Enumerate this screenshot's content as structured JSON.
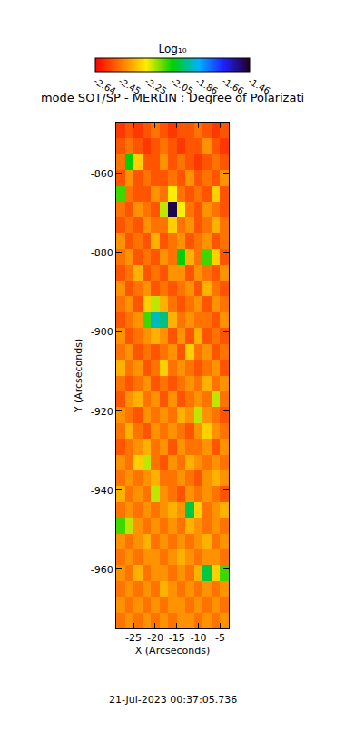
{
  "chart_data": {
    "type": "heatmap",
    "title": "mode SOT/SP - MERLIN : Degree of Polarizati",
    "x_label": "X (Arcseconds)",
    "y_label": "Y (Arcseconds)",
    "annotations": [
      "21-Jul-2023 00:37:05.736"
    ],
    "colorbar_title": "Log₁₀",
    "zlim": [
      -2.64,
      -1.46
    ],
    "zticks": [
      -2.64,
      -2.45,
      -2.25,
      -2.05,
      -1.86,
      -1.66,
      -1.46
    ],
    "xlim": [
      -29,
      -3
    ],
    "ylim": [
      -975,
      -847
    ],
    "xticks": [
      -25,
      -20,
      -15,
      -10,
      -5
    ],
    "yticks": [
      -860,
      -880,
      -900,
      -920,
      -940,
      -960
    ],
    "x": [
      -28,
      -26,
      -24,
      -22,
      -20,
      -18,
      -16,
      -14,
      -12,
      -10,
      -8,
      -6,
      -4
    ],
    "y": [
      -849,
      -853,
      -857,
      -861,
      -865,
      -869,
      -873,
      -877,
      -881,
      -885,
      -889,
      -893,
      -897,
      -901,
      -905,
      -909,
      -913,
      -917,
      -921,
      -925,
      -929,
      -933,
      -937,
      -941,
      -945,
      -949,
      -953,
      -957,
      -961,
      -965,
      -969,
      -973
    ],
    "z": [
      [
        -2.55,
        -2.5,
        -2.55,
        -2.5,
        -2.45,
        -2.5,
        -2.55,
        -2.5,
        -2.5,
        -2.45,
        -2.5,
        -2.55,
        -2.5
      ],
      [
        -2.5,
        -2.45,
        -2.5,
        -2.55,
        -2.5,
        -2.45,
        -2.5,
        -2.55,
        -2.5,
        -2.5,
        -2.4,
        -2.5,
        -2.55
      ],
      [
        -2.45,
        -2.05,
        -2.3,
        -2.5,
        -2.5,
        -2.4,
        -2.5,
        -2.45,
        -2.5,
        -2.55,
        -2.5,
        -2.45,
        -2.5
      ],
      [
        -2.5,
        -2.4,
        -2.5,
        -2.45,
        -2.5,
        -2.5,
        -2.45,
        -2.5,
        -2.4,
        -2.5,
        -2.45,
        -2.5,
        -2.4
      ],
      [
        -2.1,
        -2.45,
        -2.5,
        -2.5,
        -2.4,
        -2.45,
        -2.25,
        -2.45,
        -2.5,
        -2.45,
        -2.5,
        -2.3,
        -2.5
      ],
      [
        -2.45,
        -2.5,
        -2.4,
        -2.45,
        -2.5,
        -2.2,
        -1.5,
        -2.25,
        -2.45,
        -2.5,
        -2.4,
        -2.45,
        -2.5
      ],
      [
        -2.5,
        -2.45,
        -2.5,
        -2.4,
        -2.45,
        -2.45,
        -2.3,
        -2.45,
        -2.4,
        -2.5,
        -2.45,
        -2.35,
        -2.45
      ],
      [
        -2.4,
        -2.5,
        -2.45,
        -2.5,
        -2.35,
        -2.5,
        -2.45,
        -2.4,
        -2.5,
        -2.45,
        -2.4,
        -2.5,
        -2.45
      ],
      [
        -2.45,
        -2.4,
        -2.5,
        -2.45,
        -2.5,
        -2.4,
        -2.45,
        -2.05,
        -2.35,
        -2.45,
        -2.1,
        -2.3,
        -2.5
      ],
      [
        -2.5,
        -2.45,
        -2.35,
        -2.5,
        -2.45,
        -2.5,
        -2.4,
        -2.4,
        -2.5,
        -2.4,
        -2.45,
        -2.5,
        -2.4
      ],
      [
        -2.4,
        -2.5,
        -2.45,
        -2.4,
        -2.5,
        -2.45,
        -2.5,
        -2.45,
        -2.4,
        -2.5,
        -2.35,
        -2.45,
        -2.5
      ],
      [
        -2.45,
        -2.4,
        -2.5,
        -2.3,
        -2.2,
        -2.35,
        -2.45,
        -2.5,
        -2.45,
        -2.4,
        -2.5,
        -2.4,
        -2.45
      ],
      [
        -2.5,
        -2.45,
        -2.4,
        -2.1,
        -1.9,
        -1.95,
        -2.35,
        -2.45,
        -2.4,
        -2.45,
        -2.45,
        -2.5,
        -2.4
      ],
      [
        -2.4,
        -2.5,
        -2.45,
        -2.4,
        -2.35,
        -2.4,
        -2.5,
        -2.4,
        -2.5,
        -2.35,
        -2.5,
        -2.45,
        -2.5
      ],
      [
        -2.45,
        -2.4,
        -2.5,
        -2.45,
        -2.5,
        -2.45,
        -2.4,
        -2.5,
        -2.3,
        -2.45,
        -2.4,
        -2.5,
        -2.45
      ],
      [
        -2.35,
        -2.45,
        -2.4,
        -2.5,
        -2.45,
        -2.3,
        -2.45,
        -2.4,
        -2.45,
        -2.5,
        -2.45,
        -2.4,
        -2.5
      ],
      [
        -2.45,
        -2.5,
        -2.45,
        -2.4,
        -2.5,
        -2.45,
        -2.5,
        -2.45,
        -2.4,
        -2.45,
        -2.35,
        -2.45,
        -2.4
      ],
      [
        -2.5,
        -2.4,
        -2.35,
        -2.45,
        -2.4,
        -2.5,
        -2.4,
        -2.5,
        -2.45,
        -2.4,
        -2.45,
        -2.2,
        -2.45
      ],
      [
        -2.4,
        -2.45,
        -2.5,
        -2.4,
        -2.45,
        -2.4,
        -2.45,
        -2.35,
        -2.4,
        -2.2,
        -2.4,
        -2.45,
        -2.5
      ],
      [
        -2.45,
        -2.35,
        -2.45,
        -2.5,
        -2.4,
        -2.45,
        -2.4,
        -2.45,
        -2.5,
        -2.4,
        -2.3,
        -2.4,
        -2.45
      ],
      [
        -2.5,
        -2.45,
        -2.4,
        -2.35,
        -2.45,
        -2.4,
        -2.5,
        -2.4,
        -2.45,
        -2.45,
        -2.4,
        -2.5,
        -2.4
      ],
      [
        -2.4,
        -2.45,
        -2.3,
        -2.2,
        -2.45,
        -2.5,
        -2.4,
        -2.45,
        -2.35,
        -2.4,
        -2.45,
        -2.4,
        -2.45
      ],
      [
        -2.45,
        -2.4,
        -2.45,
        -2.4,
        -2.35,
        -2.45,
        -2.45,
        -2.4,
        -2.45,
        -2.5,
        -2.4,
        -2.35,
        -2.4
      ],
      [
        -2.35,
        -2.45,
        -2.4,
        -2.45,
        -2.2,
        -2.4,
        -2.45,
        -2.5,
        -2.4,
        -2.45,
        -2.4,
        -2.45,
        -2.5
      ],
      [
        -2.45,
        -2.4,
        -2.45,
        -2.4,
        -2.45,
        -2.4,
        -2.35,
        -2.4,
        -2.0,
        -2.3,
        -2.45,
        -2.4,
        -2.35
      ],
      [
        -2.1,
        -2.2,
        -2.4,
        -2.45,
        -2.4,
        -2.45,
        -2.4,
        -2.45,
        -2.35,
        -2.4,
        -2.45,
        -2.4,
        -2.45
      ],
      [
        -2.4,
        -2.45,
        -2.4,
        -2.35,
        -2.45,
        -2.4,
        -2.45,
        -2.4,
        -2.45,
        -2.4,
        -2.35,
        -2.45,
        -2.4
      ],
      [
        -2.45,
        -2.4,
        -2.45,
        -2.4,
        -2.4,
        -2.45,
        -2.4,
        -2.35,
        -2.4,
        -2.45,
        -2.4,
        -2.4,
        -2.45
      ],
      [
        -2.4,
        -2.45,
        -2.35,
        -2.45,
        -2.4,
        -2.4,
        -2.45,
        -2.4,
        -2.45,
        -2.35,
        -2.0,
        -2.3,
        -2.1
      ],
      [
        -2.45,
        -2.4,
        -2.45,
        -2.4,
        -2.45,
        -2.35,
        -2.4,
        -2.45,
        -2.4,
        -2.45,
        -2.4,
        -2.45,
        -2.4
      ],
      [
        -2.4,
        -2.45,
        -2.4,
        -2.45,
        -2.4,
        -2.45,
        -2.4,
        -2.4,
        -2.45,
        -2.4,
        -2.45,
        -2.4,
        -2.45
      ],
      [
        -2.45,
        -2.4,
        -2.45,
        -2.4,
        -2.45,
        -2.4,
        -2.45,
        -2.4,
        -2.4,
        -2.45,
        -2.4,
        -2.45,
        -2.4
      ]
    ]
  }
}
